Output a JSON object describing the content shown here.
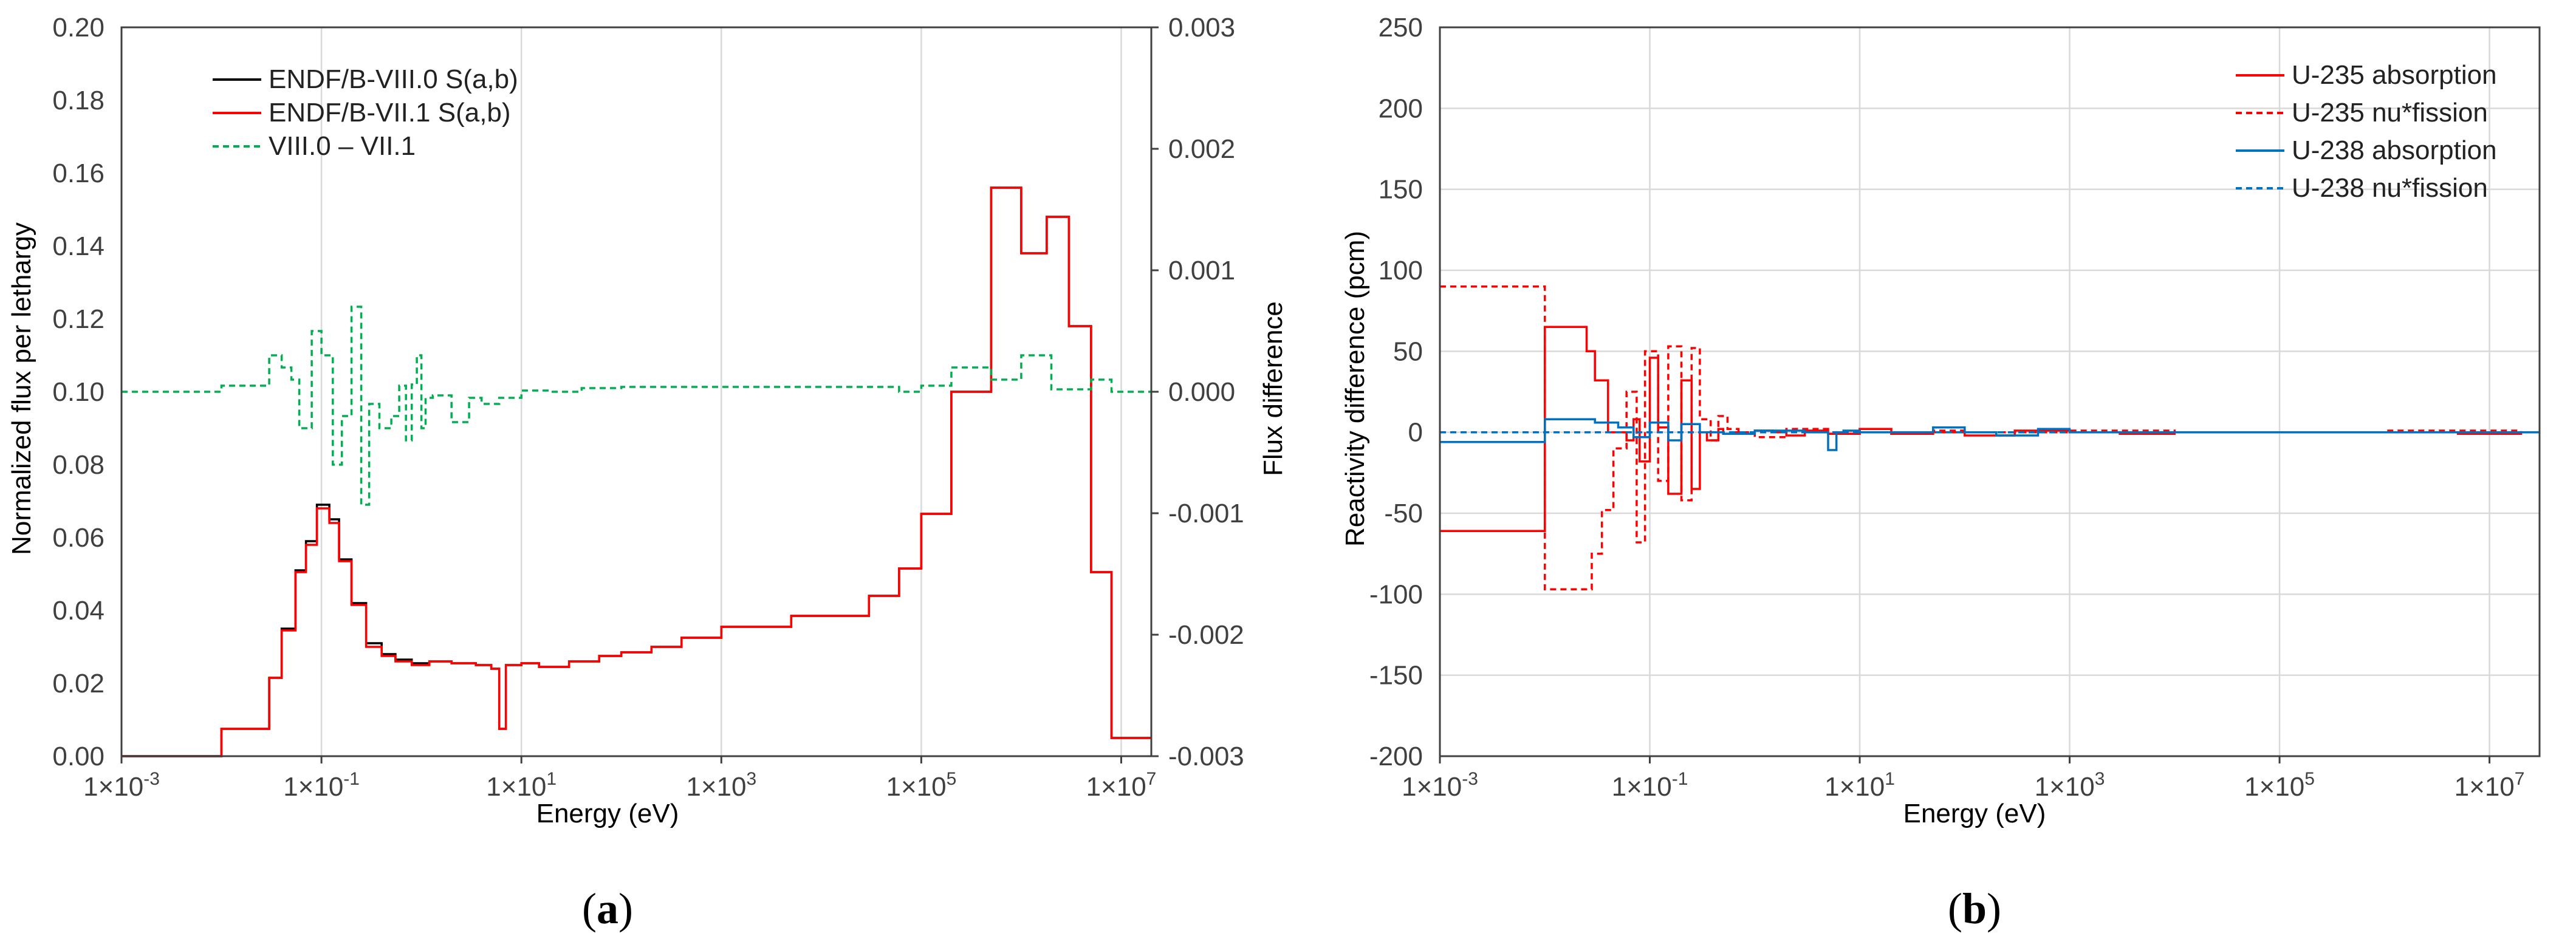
{
  "chart_data": [
    {
      "type": "line",
      "panel_label": "(a)",
      "xlabel": "Energy (eV)",
      "ylabel": "Normalized flux per lethargy",
      "y2label": "Flux difference",
      "xscale": "log",
      "xlim": [
        0.001,
        20000000
      ],
      "ylim": [
        0,
        0.2
      ],
      "y2lim": [
        -0.003,
        0.003
      ],
      "x_ticks": [
        0.001,
        0.1,
        10,
        1000,
        100000,
        10000000
      ],
      "x_tick_labels": [
        "1×10-3",
        "1×10-1",
        "1×101",
        "1×103",
        "1×105",
        "1×107"
      ],
      "x_tick_base": [
        "1×10",
        "1×10",
        "1×10",
        "1×10",
        "1×10",
        "1×10"
      ],
      "x_tick_exp": [
        "-3",
        "-1",
        "1",
        "3",
        "5",
        "7"
      ],
      "y_ticks": [
        0,
        0.02,
        0.04,
        0.06,
        0.08,
        0.1,
        0.12,
        0.14,
        0.16,
        0.18,
        0.2
      ],
      "y_tick_labels": [
        "0.00",
        "0.02",
        "0.04",
        "0.06",
        "0.08",
        "0.10",
        "0.12",
        "0.14",
        "0.16",
        "0.18",
        "0.20"
      ],
      "y2_ticks": [
        -0.003,
        -0.002,
        -0.001,
        0,
        0.001,
        0.002,
        0.003
      ],
      "y2_tick_labels": [
        "-0.003",
        "-0.002",
        "-0.001",
        "0.000",
        "0.001",
        "0.002",
        "0.003"
      ],
      "grid": "vertical",
      "legend_position": "top-left",
      "series": [
        {
          "name": "ENDF/B-VIII.0 S(a,b)",
          "color": "#000000",
          "style": "solid",
          "axis": "left",
          "step": true,
          "x": [
            0.001,
            0.01,
            0.03,
            0.04,
            0.055,
            0.07,
            0.09,
            0.12,
            0.15,
            0.2,
            0.28,
            0.4,
            0.55,
            0.8,
            1.2,
            2,
            3.5,
            5,
            6,
            7,
            10,
            15,
            30,
            60,
            100,
            200,
            400,
            1000,
            5000,
            30000,
            60000,
            100000,
            200000,
            500000,
            1000000,
            1800000,
            3000000,
            5000000,
            8000000
          ],
          "y": [
            0,
            0.0075,
            0.0215,
            0.035,
            0.051,
            0.059,
            0.069,
            0.065,
            0.054,
            0.042,
            0.031,
            0.028,
            0.0265,
            0.0255,
            0.026,
            0.0255,
            0.025,
            0.024,
            0.0075,
            0.025,
            0.0255,
            0.0245,
            0.026,
            0.0275,
            0.0285,
            0.03,
            0.0325,
            0.0355,
            0.0385,
            0.044,
            0.0515,
            0.0665,
            0.1,
            0.156,
            0.138,
            0.148,
            0.118,
            0.0505,
            0.005
          ]
        },
        {
          "name": "ENDF/B-VII.1 S(a,b)",
          "color": "#ff0000",
          "style": "solid",
          "axis": "left",
          "step": true,
          "x": [
            0.001,
            0.01,
            0.03,
            0.04,
            0.055,
            0.07,
            0.09,
            0.12,
            0.15,
            0.2,
            0.28,
            0.4,
            0.55,
            0.8,
            1.2,
            2,
            3.5,
            5,
            6,
            7,
            10,
            15,
            30,
            60,
            100,
            200,
            400,
            1000,
            5000,
            30000,
            60000,
            100000,
            200000,
            500000,
            1000000,
            1800000,
            3000000,
            5000000,
            8000000
          ],
          "y": [
            0,
            0.0075,
            0.0215,
            0.0345,
            0.0505,
            0.058,
            0.068,
            0.064,
            0.0535,
            0.0415,
            0.03,
            0.0275,
            0.026,
            0.025,
            0.026,
            0.0255,
            0.025,
            0.024,
            0.0075,
            0.025,
            0.0255,
            0.0245,
            0.026,
            0.0275,
            0.0285,
            0.03,
            0.0325,
            0.0355,
            0.0385,
            0.044,
            0.0515,
            0.0665,
            0.1,
            0.156,
            0.138,
            0.148,
            0.118,
            0.0505,
            0.005
          ]
        },
        {
          "name": "VIII.0 – VII.1",
          "color": "#00b050",
          "style": "dashed",
          "axis": "right",
          "step": true,
          "x": [
            0.001,
            0.01,
            0.03,
            0.04,
            0.05,
            0.06,
            0.08,
            0.1,
            0.13,
            0.16,
            0.2,
            0.25,
            0.3,
            0.38,
            0.5,
            0.6,
            0.7,
            0.8,
            0.9,
            1.0,
            1.1,
            1.3,
            2,
            3,
            4,
            6,
            10,
            20,
            40,
            100,
            10000,
            60000,
            100000,
            200000,
            500000,
            1000000,
            2000000,
            5000000,
            8000000
          ],
          "y": [
            0,
            5e-05,
            0.0003,
            0.0002,
            0.0001,
            -0.0003,
            0.0005,
            0.0003,
            -0.0006,
            -0.0002,
            0.0007,
            -0.00093,
            -0.0001,
            -0.0003,
            -0.0002,
            5e-05,
            -0.0004,
            6e-05,
            0.0003,
            -0.0003,
            -5e-05,
            -3e-05,
            -0.00025,
            -5e-05,
            -0.0001,
            -5e-05,
            1e-05,
            0.0,
            3e-05,
            4e-05,
            4e-05,
            0.0,
            5e-05,
            0.0002,
            0.0001,
            0.0003,
            2e-05,
            0.0001,
            0.0
          ]
        }
      ]
    },
    {
      "type": "line",
      "panel_label": "(b)",
      "xlabel": "Energy (eV)",
      "ylabel": "Reactivity difference (pcm)",
      "xscale": "log",
      "xlim": [
        0.001,
        30000000
      ],
      "ylim": [
        -200,
        250
      ],
      "x_ticks": [
        0.001,
        0.1,
        10,
        1000,
        100000,
        10000000
      ],
      "x_tick_labels": [
        "1×10-3",
        "1×10-1",
        "1×101",
        "1×103",
        "1×105",
        "1×107"
      ],
      "x_tick_base": [
        "1×10",
        "1×10",
        "1×10",
        "1×10",
        "1×10",
        "1×10"
      ],
      "x_tick_exp": [
        "-3",
        "-1",
        "1",
        "3",
        "5",
        "7"
      ],
      "y_ticks": [
        -200,
        -150,
        -100,
        -50,
        0,
        50,
        100,
        150,
        200,
        250
      ],
      "y_tick_labels": [
        "-200",
        "-150",
        "-100",
        "-50",
        "0",
        "50",
        "100",
        "150",
        "200",
        "250"
      ],
      "grid": "both",
      "legend_position": "top-right",
      "series": [
        {
          "name": "U-235 absorption",
          "color": "#ff0000",
          "style": "solid",
          "step": true,
          "x": [
            0.001,
            0.01,
            0.025,
            0.03,
            0.04,
            0.06,
            0.07,
            0.08,
            0.1,
            0.12,
            0.15,
            0.2,
            0.25,
            0.3,
            0.35,
            0.45,
            0.5,
            0.6,
            0.8,
            1.0,
            1.5,
            2,
            3,
            5,
            10,
            20,
            50,
            100,
            300,
            1000,
            3000,
            10000,
            100000,
            1000000,
            5000000,
            20000000
          ],
          "y": [
            -61,
            65,
            50,
            32,
            0,
            -5,
            8,
            -18,
            46,
            3,
            -38,
            32,
            -35,
            0,
            -5,
            2,
            -1,
            0,
            -1,
            1,
            0,
            -2,
            1,
            -1,
            2,
            -1,
            0,
            -2,
            1,
            0,
            -1,
            0,
            0,
            0,
            -1,
            0
          ]
        },
        {
          "name": "U-235 nu*fission",
          "color": "#ff0000",
          "style": "dashed",
          "step": true,
          "x": [
            0.001,
            0.01,
            0.028,
            0.035,
            0.045,
            0.06,
            0.075,
            0.09,
            0.12,
            0.15,
            0.2,
            0.25,
            0.3,
            0.38,
            0.45,
            0.55,
            0.7,
            1,
            2,
            5,
            10,
            20,
            50,
            100,
            1000,
            10000,
            1000000,
            20000000
          ],
          "y": [
            90,
            -97,
            -75,
            -48,
            -10,
            25,
            -68,
            50,
            -30,
            53,
            -42,
            52,
            8,
            -5,
            10,
            2,
            0,
            -3,
            2,
            -1,
            2,
            -1,
            1,
            0,
            1,
            0,
            1,
            0
          ]
        },
        {
          "name": "U-238 absorption",
          "color": "#0070c0",
          "style": "solid",
          "step": true,
          "x": [
            0.001,
            0.01,
            0.03,
            0.05,
            0.07,
            0.1,
            0.15,
            0.2,
            0.3,
            0.5,
            1,
            3,
            5,
            6,
            7,
            10,
            50,
            100,
            200,
            500,
            1000,
            10000,
            20000000
          ],
          "y": [
            -6,
            8,
            6,
            3,
            -3,
            6,
            -5,
            5,
            0,
            -1,
            1,
            0,
            -11,
            0,
            1,
            0,
            3,
            0,
            -2,
            2,
            0,
            0,
            0
          ]
        },
        {
          "name": "U-238 nu*fission",
          "color": "#0070c0",
          "style": "dashed",
          "step": true,
          "x": [
            0.001,
            20000000
          ],
          "y": [
            0,
            0
          ]
        }
      ]
    }
  ]
}
